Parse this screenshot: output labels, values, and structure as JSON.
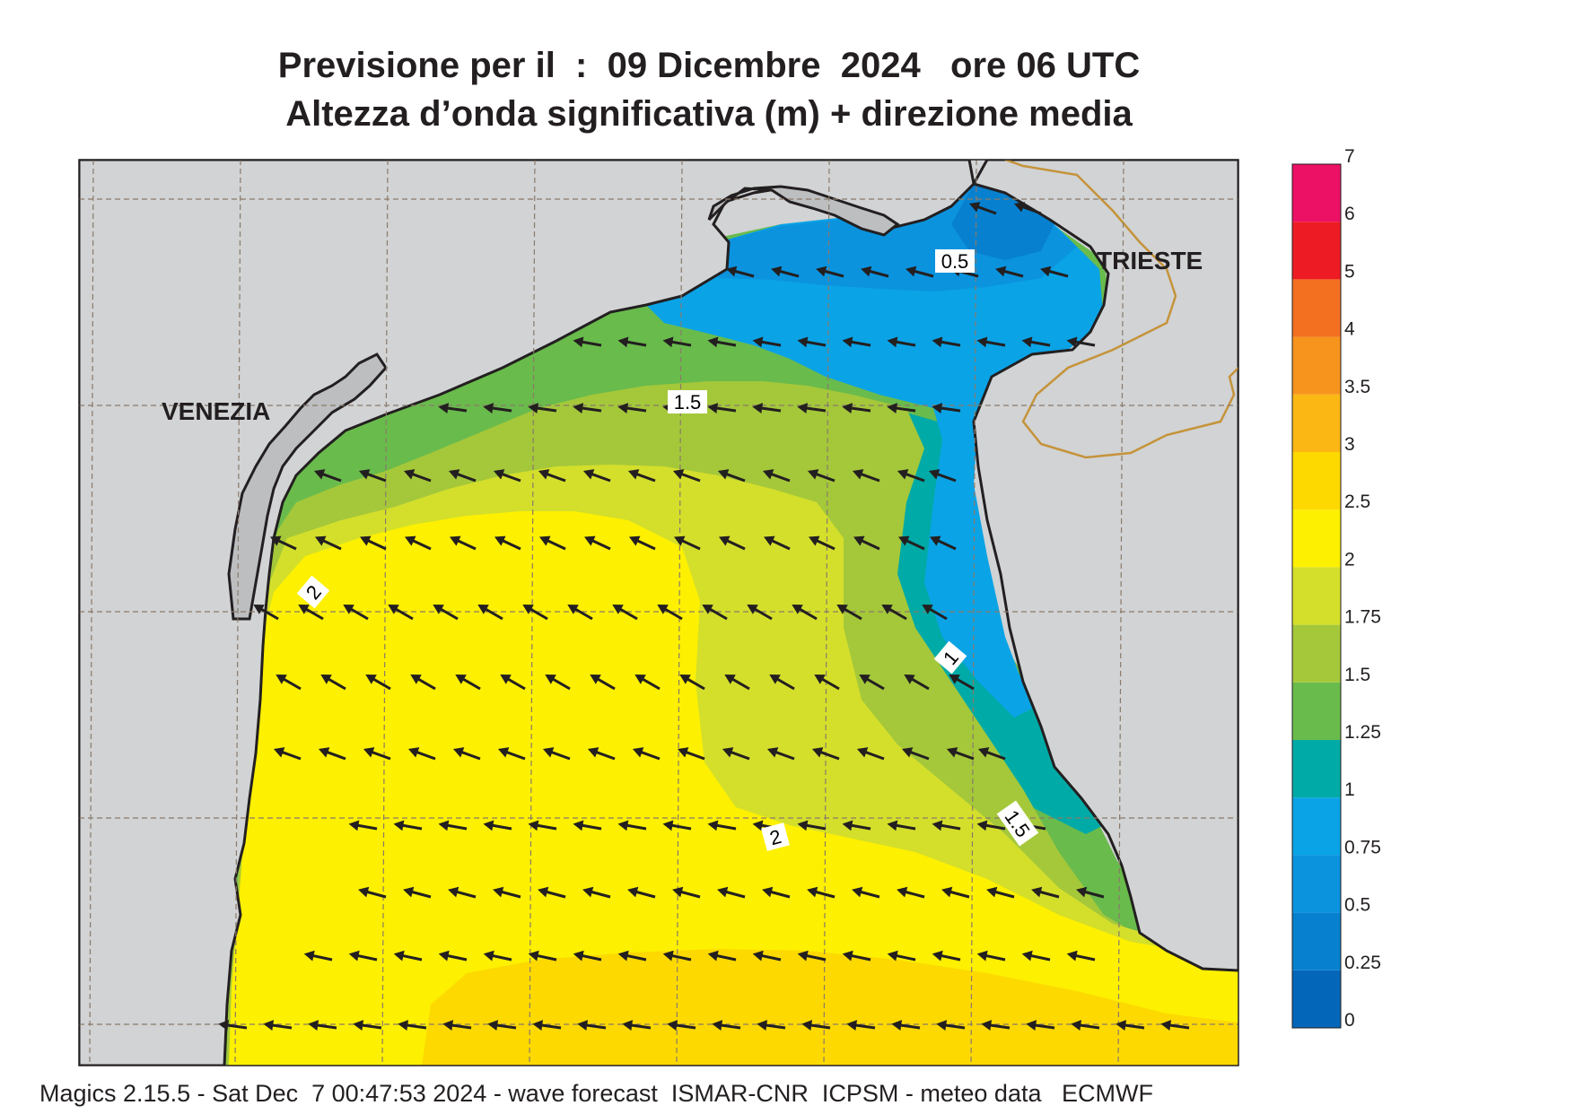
{
  "title_line1": "Previsione per il  :  09 Dicembre  2024   ore 06 UTC",
  "title_line2": "Altezza d’onda significativa (m) + direzione media",
  "cities": [
    {
      "name": "VENEZIA"
    },
    {
      "name": "TRIESTE"
    }
  ],
  "contour_labels": [
    "0.5",
    "1.5",
    "2",
    "1",
    "1.5",
    "2"
  ],
  "colorbar": {
    "ticks": [
      "0",
      "0.25",
      "0.5",
      "0.75",
      "1",
      "1.25",
      "1.5",
      "1.75",
      "2",
      "2.5",
      "3",
      "3.5",
      "4",
      "5",
      "6",
      "7"
    ],
    "colors": [
      "#0466b8",
      "#0781cf",
      "#0b93de",
      "#0aa3e6",
      "#00aaa6",
      "#69bb4c",
      "#a4c83a",
      "#d4df2b",
      "#fdf000",
      "#fdd900",
      "#fbb714",
      "#f7941d",
      "#f37021",
      "#ed1c24",
      "#ec1164"
    ]
  },
  "colors": {
    "land": "#d1d3d4",
    "border": "#c5933a",
    "arrow": "#231f20"
  },
  "footer": "Magics 2.15.5 - Sat Dec  7 00:47:53 2024 - wave forecast  ISMAR-CNR  ICPSM - meteo data   ECMWF"
}
